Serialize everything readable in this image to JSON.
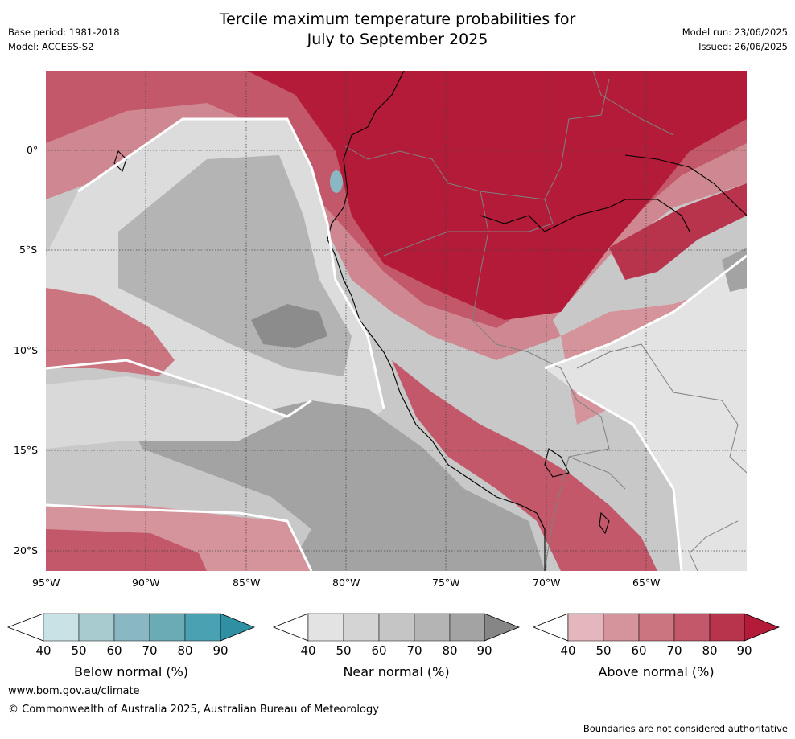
{
  "header": {
    "title_line1": "Tercile maximum temperature probabilities for",
    "title_line2": "July to September 2025",
    "base_period": "Base period: 1981-2018",
    "model": "Model: ACCESS-S2",
    "model_run": "Model run: 23/06/2025",
    "issued": "Issued: 26/06/2025"
  },
  "map": {
    "lat_labels": [
      "0°",
      "5°S",
      "10°S",
      "15°S",
      "20°S"
    ],
    "lon_labels": [
      "95°W",
      "90°W",
      "85°W",
      "80°W",
      "75°W",
      "70°W",
      "65°W"
    ],
    "colors": {
      "sea_grey": "#c8c8c8",
      "land_red": "#b31b39",
      "coast": "#000000",
      "border": "#808080",
      "gridline": "#444444"
    }
  },
  "colorbars": [
    {
      "label": "Below normal (%)",
      "ticks": [
        "40",
        "50",
        "60",
        "70",
        "80",
        "90"
      ],
      "colors": [
        "#c9e2e6",
        "#a8cbd0",
        "#8ab8c2",
        "#6aabb6",
        "#4aa1b1",
        "#2f8fa3"
      ]
    },
    {
      "label": "Near normal (%)",
      "ticks": [
        "40",
        "50",
        "60",
        "70",
        "80",
        "90"
      ],
      "colors": [
        "#e3e3e3",
        "#d4d4d4",
        "#c5c5c5",
        "#b4b4b4",
        "#a3a3a3",
        "#868686"
      ]
    },
    {
      "label": "Above normal (%)",
      "ticks": [
        "40",
        "50",
        "60",
        "70",
        "80",
        "90"
      ],
      "colors": [
        "#e3b7bd",
        "#d5939c",
        "#cb7581",
        "#c25869",
        "#b8334c",
        "#b31b39"
      ]
    }
  ],
  "footer": {
    "website": "www.bom.gov.au/climate",
    "copyright": "© Commonwealth of Australia 2025, Australian Bureau of Meteorology",
    "disclaimer": "Boundaries are not considered authoritative"
  }
}
